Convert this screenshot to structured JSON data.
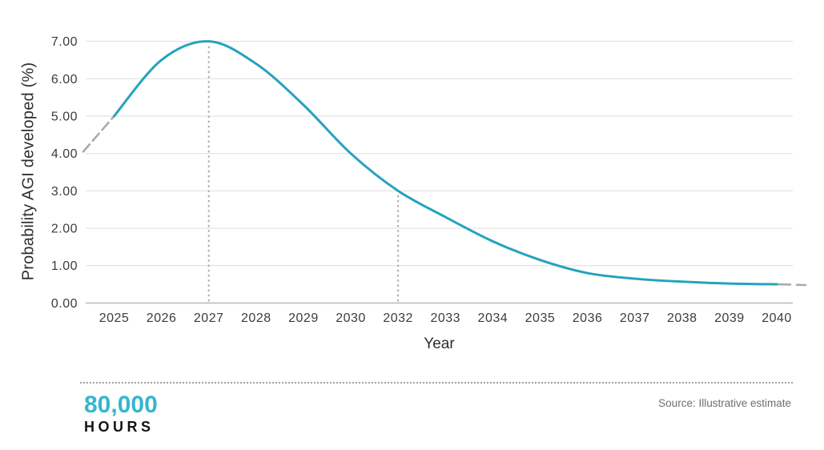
{
  "chart_data": {
    "type": "line",
    "title": "",
    "xlabel": "Year",
    "ylabel": "Probability AGI developed (%)",
    "categories": [
      "2025",
      "2026",
      "2027",
      "2028",
      "2029",
      "2030",
      "2032",
      "2033",
      "2034",
      "2035",
      "2036",
      "2037",
      "2038",
      "2039",
      "2040"
    ],
    "series": [
      {
        "name": "Probability AGI developed (%)",
        "color": "#24A3BE",
        "values": [
          5.0,
          6.5,
          7.0,
          6.4,
          5.3,
          4.0,
          3.0,
          2.3,
          1.65,
          1.15,
          0.8,
          0.65,
          0.57,
          0.52,
          0.5
        ]
      }
    ],
    "ylim": [
      0,
      7
    ],
    "ytick_labels": [
      "0.00",
      "1.00",
      "2.00",
      "3.00",
      "4.00",
      "5.00",
      "6.00",
      "7.00"
    ],
    "grid": "horizontal",
    "legend_position": "none",
    "lead_in_dashed": {
      "start_value": 4.05,
      "end_category": "2025",
      "end_value": 5.0
    },
    "tail_dashed": {
      "start_category": "2040",
      "start_value": 0.5,
      "end_value": 0.48
    },
    "reference_lines": [
      {
        "category": "2027",
        "top_value": 7.0
      },
      {
        "category": "2032",
        "top_value": 3.0
      }
    ],
    "colors": {
      "line": "#24A3BE",
      "dashed_segment": "#ABABAB",
      "reference_line": "#A9A9A9",
      "gridline": "#E3E3E3",
      "axis_line": "#BDBDBD",
      "tick_text": "#3C3C3C"
    }
  },
  "footer": {
    "logo_line1": "80,000",
    "logo_line2": "HOURS",
    "logo_color": "#35B6CE",
    "source_text": "Source: Illustrative estimate"
  }
}
